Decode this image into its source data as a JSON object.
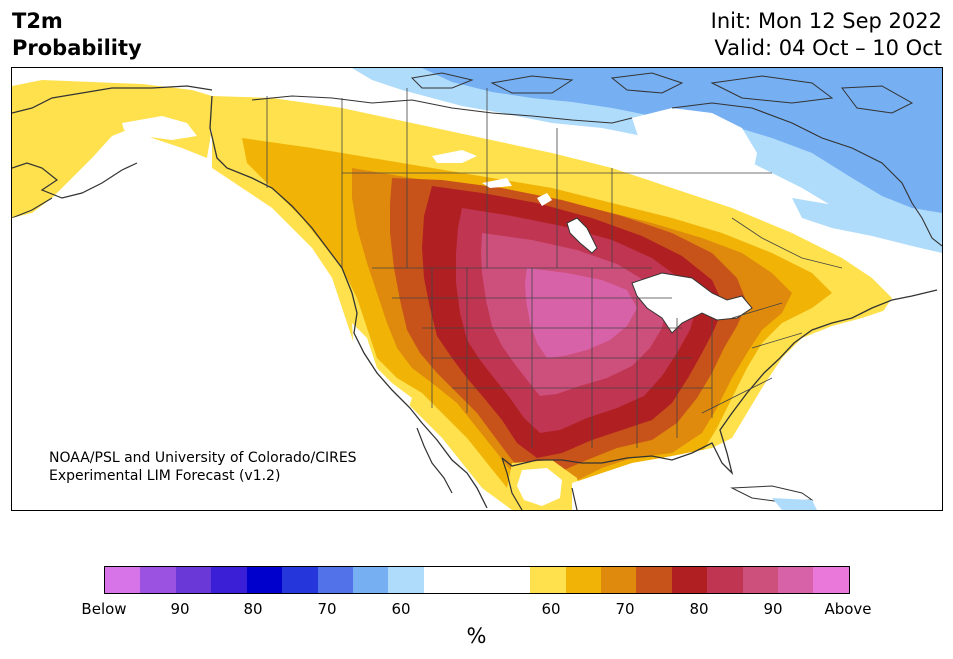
{
  "title": {
    "line1": "T2m",
    "line2": "Probability"
  },
  "dates": {
    "init": "Init: Mon 12 Sep 2022",
    "valid": "Valid: 04 Oct – 10 Oct"
  },
  "credit": {
    "line1": "NOAA/PSL and University of Colorado/CIRES",
    "line2": "Experimental LIM Forecast (v1.2)"
  },
  "legend": {
    "unit": "%",
    "tick_labels": [
      "Below",
      "90",
      "80",
      "70",
      "60",
      "60",
      "70",
      "80",
      "90",
      "Above"
    ],
    "below_colors": [
      "#d674e8",
      "#9b52e0",
      "#6b38d8",
      "#3a1fd6",
      "#0000cc",
      "#2537db",
      "#5272ea",
      "#76b0f3",
      "#b0dcfc"
    ],
    "neutral_color": "#ffffff",
    "above_colors": [
      "#fee14c",
      "#f1b406",
      "#df8a0c",
      "#c8531a",
      "#b01f22",
      "#c03551",
      "#cd4f7c",
      "#d862a8",
      "#ea78db"
    ]
  },
  "map_colors": {
    "land_neutral": "#ffffff",
    "ocean": "#ffffff",
    "coast": "#333333",
    "lakes": "#ffffff"
  }
}
